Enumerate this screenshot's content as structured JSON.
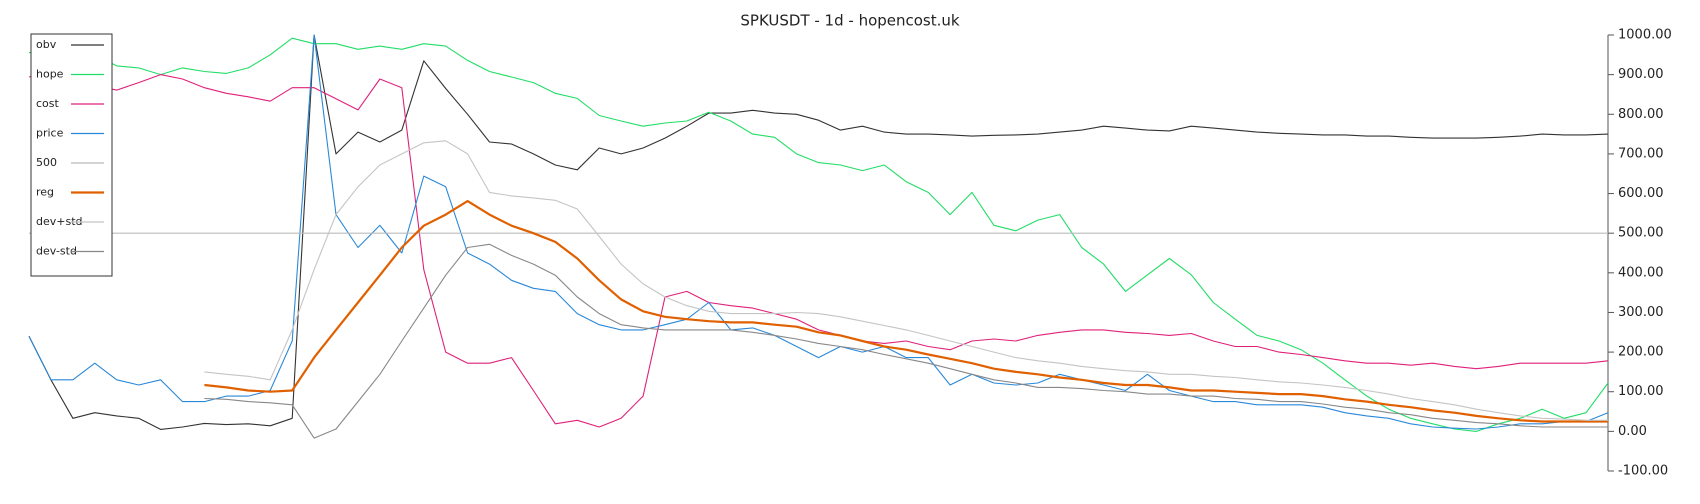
{
  "chart_data": {
    "type": "line",
    "title": "SPKUSDT - 1d - hopencost.uk",
    "ylim": [
      -100,
      1000
    ],
    "yticks": [
      {
        "value": 1000,
        "label": "1000.00"
      },
      {
        "value": 900,
        "label": "900.00"
      },
      {
        "value": 800,
        "label": "800.00"
      },
      {
        "value": 700,
        "label": "700.00"
      },
      {
        "value": 600,
        "label": "600.00"
      },
      {
        "value": 500,
        "label": "500.00"
      },
      {
        "value": 400,
        "label": "400.00"
      },
      {
        "value": 300,
        "label": "300.00"
      },
      {
        "value": 200,
        "label": "200.00"
      },
      {
        "value": 100,
        "label": "100.00"
      },
      {
        "value": 0,
        "label": "0.00"
      },
      {
        "value": -100,
        "label": "-100.00"
      }
    ],
    "legend": "upper left",
    "series": [
      {
        "name": "obv",
        "color": "#333333",
        "values": [
          240,
          130,
          33,
          47,
          39,
          33,
          5,
          11,
          20,
          17,
          19,
          14,
          33,
          1000,
          700,
          755,
          730,
          760,
          935,
          865,
          800,
          730,
          725,
          700,
          672,
          660,
          715,
          700,
          715,
          740,
          770,
          803,
          803,
          810,
          803,
          800,
          785,
          760,
          770,
          755,
          750,
          750,
          748,
          745,
          747,
          748,
          750,
          755,
          760,
          770,
          765,
          760,
          758,
          770,
          765,
          760,
          755,
          752,
          750,
          748,
          748,
          745,
          745,
          742,
          740,
          740,
          740,
          742,
          745,
          750,
          748,
          748,
          750
        ]
      },
      {
        "name": "hope",
        "color": "#22dd66",
        "values": [
          955,
          972,
          964,
          950,
          922,
          917,
          900,
          917,
          908,
          903,
          917,
          950,
          992,
          978,
          978,
          964,
          972,
          964,
          978,
          972,
          936,
          908,
          894,
          880,
          853,
          840,
          797,
          783,
          770,
          778,
          783,
          805,
          783,
          750,
          742,
          700,
          678,
          672,
          658,
          672,
          630,
          603,
          547,
          603,
          520,
          506,
          533,
          547,
          464,
          422,
          353,
          395,
          436,
          395,
          325,
          283,
          242,
          228,
          206,
          172,
          130,
          89,
          56,
          33,
          19,
          6,
          0,
          19,
          33,
          56,
          33,
          47,
          122
        ]
      },
      {
        "name": "cost",
        "color": "#e0207a",
        "values": [
          894,
          908,
          889,
          872,
          861,
          880,
          900,
          889,
          867,
          853,
          844,
          833,
          867,
          867,
          839,
          811,
          889,
          867,
          408,
          200,
          172,
          172,
          186,
          103,
          19,
          28,
          11,
          33,
          89,
          339,
          353,
          325,
          317,
          311,
          297,
          283,
          256,
          242,
          228,
          222,
          228,
          214,
          206,
          228,
          233,
          228,
          242,
          250,
          256,
          256,
          250,
          247,
          242,
          247,
          228,
          214,
          214,
          200,
          194,
          186,
          178,
          172,
          172,
          167,
          172,
          164,
          158,
          164,
          172,
          172,
          172,
          172,
          178
        ]
      },
      {
        "name": "price",
        "color": "#2a88d8",
        "values": [
          240,
          130,
          130,
          172,
          130,
          117,
          130,
          75,
          75,
          89,
          89,
          103,
          228,
          1000,
          547,
          464,
          520,
          450,
          644,
          617,
          450,
          422,
          381,
          361,
          353,
          297,
          269,
          256,
          256,
          269,
          283,
          325,
          256,
          261,
          242,
          214,
          186,
          214,
          200,
          214,
          186,
          186,
          117,
          144,
          122,
          117,
          122,
          144,
          130,
          117,
          103,
          144,
          103,
          89,
          75,
          75,
          67,
          67,
          67,
          61,
          47,
          39,
          33,
          19,
          11,
          8,
          6,
          11,
          19,
          19,
          25,
          25,
          47
        ]
      },
      {
        "name": "500",
        "color": "#bbbbbb",
        "values": [
          500,
          500,
          500,
          500,
          500,
          500,
          500,
          500,
          500,
          500,
          500,
          500,
          500,
          500,
          500,
          500,
          500,
          500,
          500,
          500,
          500,
          500,
          500,
          500,
          500,
          500,
          500,
          500,
          500,
          500,
          500,
          500,
          500,
          500,
          500,
          500,
          500,
          500,
          500,
          500,
          500,
          500,
          500,
          500,
          500,
          500,
          500,
          500,
          500,
          500,
          500,
          500,
          500,
          500,
          500,
          500,
          500,
          500,
          500,
          500,
          500,
          500,
          500,
          500,
          500,
          500,
          500,
          500,
          500,
          500,
          500,
          500,
          500
        ]
      },
      {
        "name": "reg",
        "color": "#e06000",
        "width": 2.2,
        "values": [
          null,
          null,
          null,
          null,
          null,
          null,
          null,
          null,
          117,
          111,
          103,
          100,
          103,
          186,
          256,
          325,
          394,
          464,
          519,
          547,
          581,
          547,
          519,
          500,
          478,
          436,
          381,
          333,
          303,
          289,
          283,
          278,
          275,
          275,
          269,
          264,
          250,
          242,
          228,
          214,
          206,
          194,
          183,
          172,
          158,
          150,
          144,
          136,
          130,
          122,
          117,
          117,
          111,
          103,
          103,
          100,
          97,
          94,
          94,
          89,
          81,
          75,
          67,
          61,
          53,
          47,
          39,
          33,
          28,
          25,
          25,
          25,
          25
        ]
      },
      {
        "name": "dev+std",
        "color": "#c4c4c4",
        "values": [
          null,
          null,
          null,
          null,
          null,
          null,
          null,
          null,
          150,
          144,
          139,
          130,
          256,
          408,
          547,
          617,
          672,
          700,
          728,
          733,
          700,
          603,
          594,
          589,
          583,
          561,
          492,
          422,
          372,
          339,
          317,
          303,
          297,
          297,
          297,
          300,
          297,
          289,
          278,
          267,
          256,
          242,
          228,
          214,
          200,
          186,
          178,
          172,
          164,
          158,
          153,
          150,
          144,
          144,
          139,
          136,
          130,
          125,
          122,
          117,
          111,
          103,
          94,
          83,
          75,
          67,
          56,
          47,
          39,
          33,
          31,
          28,
          28
        ]
      },
      {
        "name": "dev-std",
        "color": "#888888",
        "values": [
          null,
          null,
          null,
          null,
          null,
          null,
          null,
          null,
          83,
          81,
          75,
          72,
          67,
          -17,
          6,
          75,
          144,
          228,
          311,
          394,
          464,
          472,
          444,
          422,
          394,
          339,
          297,
          269,
          261,
          256,
          256,
          256,
          256,
          250,
          242,
          233,
          222,
          214,
          206,
          194,
          183,
          172,
          158,
          144,
          130,
          122,
          111,
          111,
          108,
          103,
          100,
          94,
          94,
          89,
          89,
          83,
          81,
          75,
          75,
          69,
          61,
          56,
          47,
          42,
          33,
          28,
          22,
          19,
          14,
          11,
          11,
          11,
          11
        ]
      }
    ]
  }
}
